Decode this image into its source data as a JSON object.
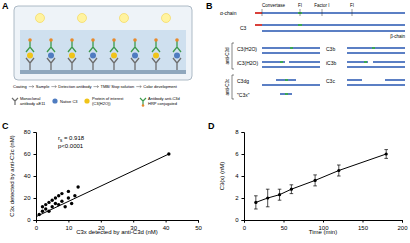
{
  "panels": {
    "A": {
      "panel_label": "A",
      "steps": [
        "Coating",
        "Sample",
        "Detection antibody",
        "TMB/ Stop solution",
        "Color development"
      ],
      "legend": [
        {
          "lines": [
            "Monoclonal",
            "antibody aE11"
          ]
        },
        {
          "lines": [
            "Native C3"
          ]
        },
        {
          "lines": [
            "Protein of interest",
            "(C3(H2O))"
          ]
        },
        {
          "lines": [
            "Antibody anti-C3d",
            "HRP conjugated"
          ]
        }
      ]
    },
    "B": {
      "panel_label": "B",
      "alpha": "α-chain",
      "c3": "C3",
      "beta": "β-chain",
      "cleavage": [
        "Convertase",
        "FI",
        "Factor I",
        "FI"
      ],
      "rows": [
        {
          "left": "C3(H2O)",
          "right": "C3b"
        },
        {
          "left": "iC3(H2O)",
          "right": "iC3b"
        },
        {
          "left": "C3dg",
          "right": "C3c"
        },
        {
          "left": "\"C3x\""
        }
      ],
      "groups": [
        "anti-C3d",
        "anti-C3c"
      ]
    }
  },
  "chart_data": [
    {
      "type": "scatter",
      "panel_label": "C",
      "x_label": "C3x detected by anti-C3d (nM)",
      "y_label": "C3x detected by anti-C3c (nM)",
      "xlim": [
        0,
        50
      ],
      "xticks": [
        0,
        10,
        20,
        30,
        40,
        50
      ],
      "ylim": [
        0,
        80
      ],
      "yticks": [
        0,
        20,
        40,
        60,
        80
      ],
      "annotations": [
        "rs = 0.918",
        "p<0.0001"
      ],
      "series": [
        {
          "type": "scatter",
          "color": "#000000",
          "x": [
            1,
            2,
            2,
            3,
            3,
            4,
            4,
            5,
            5,
            6,
            6,
            7,
            7,
            8,
            8,
            9,
            10,
            10,
            11,
            12,
            13,
            41
          ],
          "values": [
            5,
            8,
            12,
            10,
            14,
            8,
            16,
            12,
            18,
            15,
            20,
            14,
            22,
            17,
            24,
            12,
            20,
            26,
            15,
            22,
            30,
            60
          ]
        },
        {
          "type": "line",
          "color": "#000000",
          "x": [
            0,
            41
          ],
          "values": [
            3,
            60
          ]
        }
      ]
    },
    {
      "type": "line",
      "panel_label": "D",
      "x_label": "Time (min)",
      "y_label": "C3(x) (nM)",
      "xlim": [
        0,
        200
      ],
      "xticks": [
        0,
        50,
        100,
        150,
        200
      ],
      "ylim": [
        0,
        8
      ],
      "yticks": [
        0,
        2,
        4,
        6,
        8
      ],
      "series": [
        {
          "color": "#000000",
          "marker": "circle",
          "x": [
            15,
            30,
            45,
            60,
            90,
            120,
            180
          ],
          "values": [
            1.6,
            2.0,
            2.3,
            2.8,
            3.6,
            4.5,
            6.0
          ],
          "errors": [
            0.6,
            0.8,
            0.5,
            0.4,
            0.5,
            0.5,
            0.4
          ]
        }
      ]
    }
  ]
}
